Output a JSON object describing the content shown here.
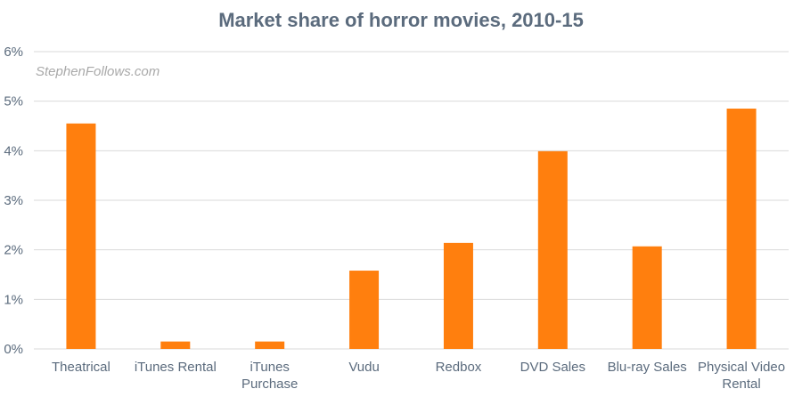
{
  "chart_data": {
    "type": "bar",
    "title": "Market share of horror movies, 2010-15",
    "watermark": "StephenFollows.com",
    "categories": [
      [
        "Theatrical"
      ],
      [
        "iTunes Rental"
      ],
      [
        "iTunes",
        "Purchase"
      ],
      [
        "Vudu"
      ],
      [
        "Redbox"
      ],
      [
        "DVD Sales"
      ],
      [
        "Blu-ray Sales"
      ],
      [
        "Physical Video",
        "Rental"
      ]
    ],
    "values": [
      4.55,
      0.15,
      0.15,
      1.58,
      2.14,
      3.99,
      2.07,
      4.85
    ],
    "ylim": [
      0,
      6
    ],
    "yticks": [
      0,
      1,
      2,
      3,
      4,
      5,
      6
    ],
    "ytick_labels": [
      "0%",
      "1%",
      "2%",
      "3%",
      "4%",
      "5%",
      "6%"
    ],
    "xlabel": "",
    "ylabel": "",
    "grid": true,
    "bar_color": "#ff7f0e"
  }
}
